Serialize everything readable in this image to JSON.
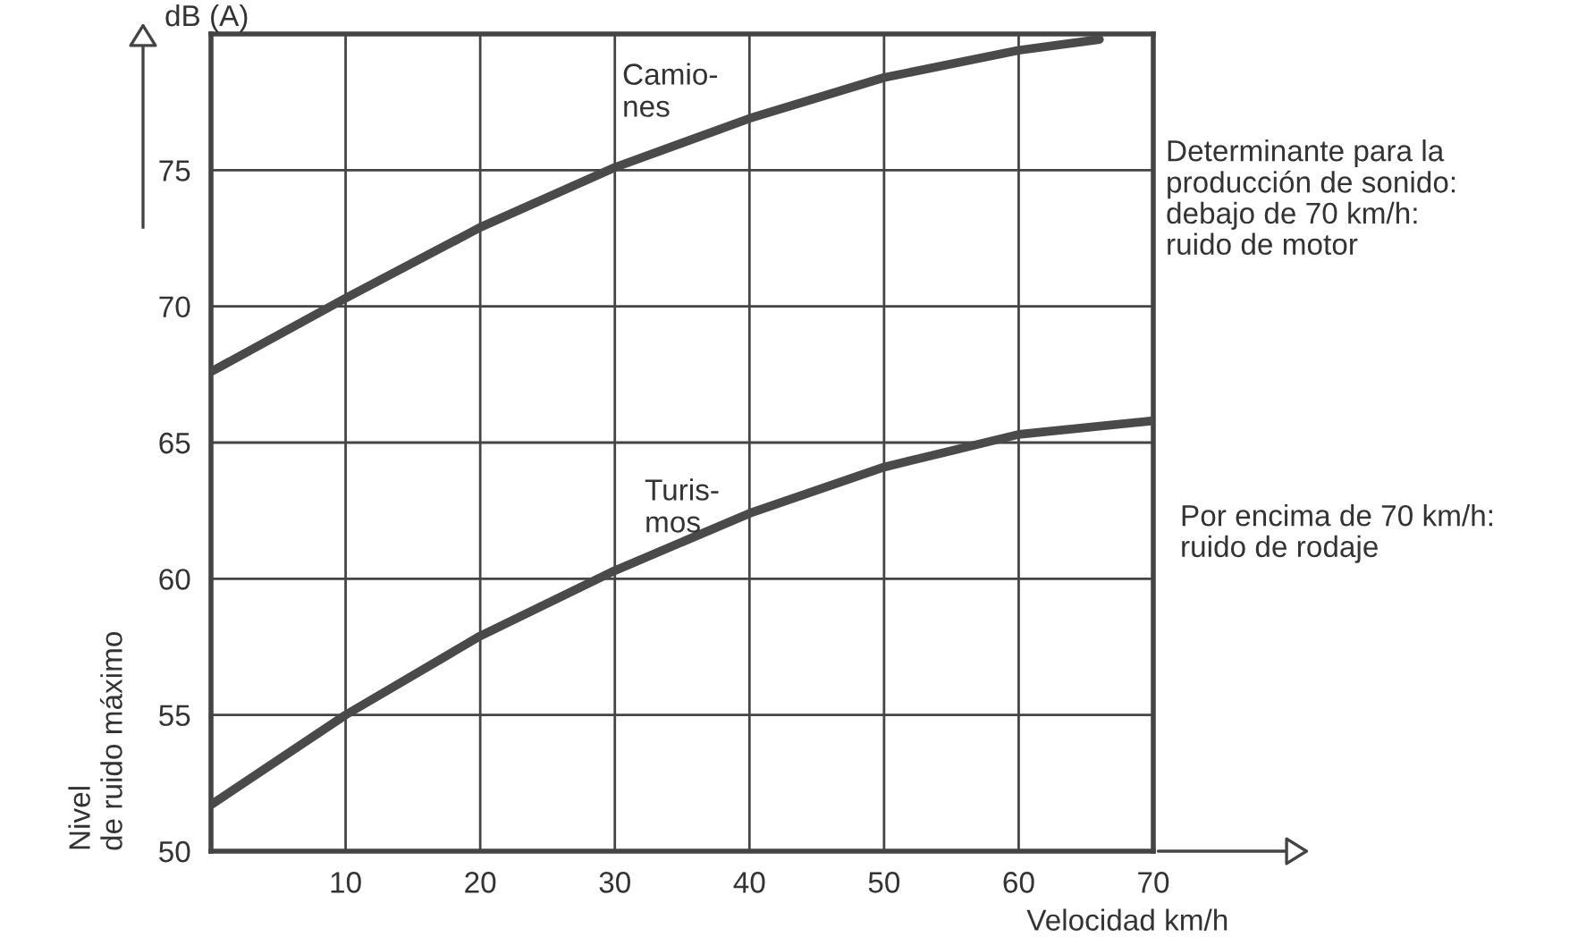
{
  "chart_data": {
    "type": "line",
    "xlabel": "Velocidad km/h",
    "ylabel": "Nivel\nde ruido máximo",
    "x": [
      0,
      10,
      20,
      30,
      40,
      50,
      60,
      66
    ],
    "series": [
      {
        "name": "Camio-\nnes",
        "color": "#4a4a4a",
        "values": [
          67.6,
          70.3,
          72.9,
          75.1,
          76.9,
          78.4,
          79.4,
          79.8
        ]
      },
      {
        "name": "Turis-\nmos",
        "color": "#4a4a4a",
        "x": [
          0,
          10,
          20,
          30,
          40,
          50,
          60,
          70
        ],
        "values": [
          51.7,
          55,
          57.9,
          60.3,
          62.4,
          64.1,
          65.3,
          65.8
        ]
      }
    ],
    "xlim": [
      0,
      70
    ],
    "ylim": [
      50,
      80
    ],
    "xticks": [
      10,
      20,
      30,
      40,
      50,
      60,
      70
    ],
    "yticks": [
      50,
      55,
      60,
      65,
      70,
      75,
      {
        "value": 80,
        "label": null
      }
    ],
    "grid": true,
    "legend": false,
    "marker": "none",
    "line_style": "solid",
    "annotations": [
      "dB (A)",
      "Determinante para la\nproducción de sonido:\ndebajo de 70 km/h:\nruido de motor",
      "Por encima de 70 km/h:\nruido de rodaje"
    ]
  }
}
